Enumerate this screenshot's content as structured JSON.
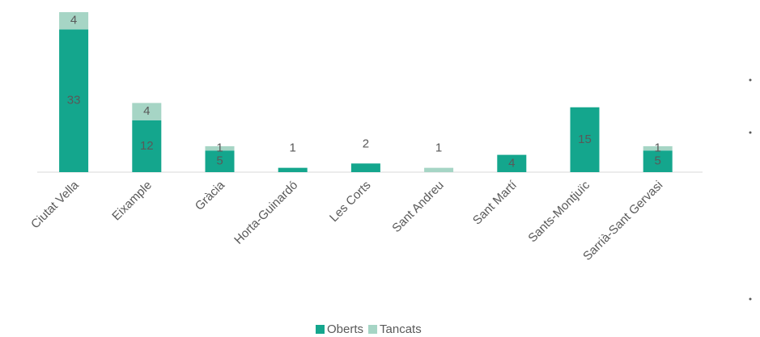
{
  "chart_data": {
    "type": "stacked_bar",
    "categories": [
      "Ciutat Vella",
      "Eixample",
      "Gràcia",
      "Horta-Guinardó",
      "Les Corts",
      "Sant Andreu",
      "Sant Martí",
      "Sants-Montjuïc",
      "Sarrià-Sant Gervasi"
    ],
    "series": [
      {
        "name": "Oberts",
        "color": "#14a68d",
        "values": [
          33,
          12,
          5,
          1,
          2,
          null,
          4,
          15,
          5
        ]
      },
      {
        "name": "Tancats",
        "color": "#a6d5c5",
        "values": [
          4,
          4,
          1,
          null,
          null,
          1,
          null,
          null,
          1
        ]
      }
    ],
    "legend": "bottom"
  }
}
